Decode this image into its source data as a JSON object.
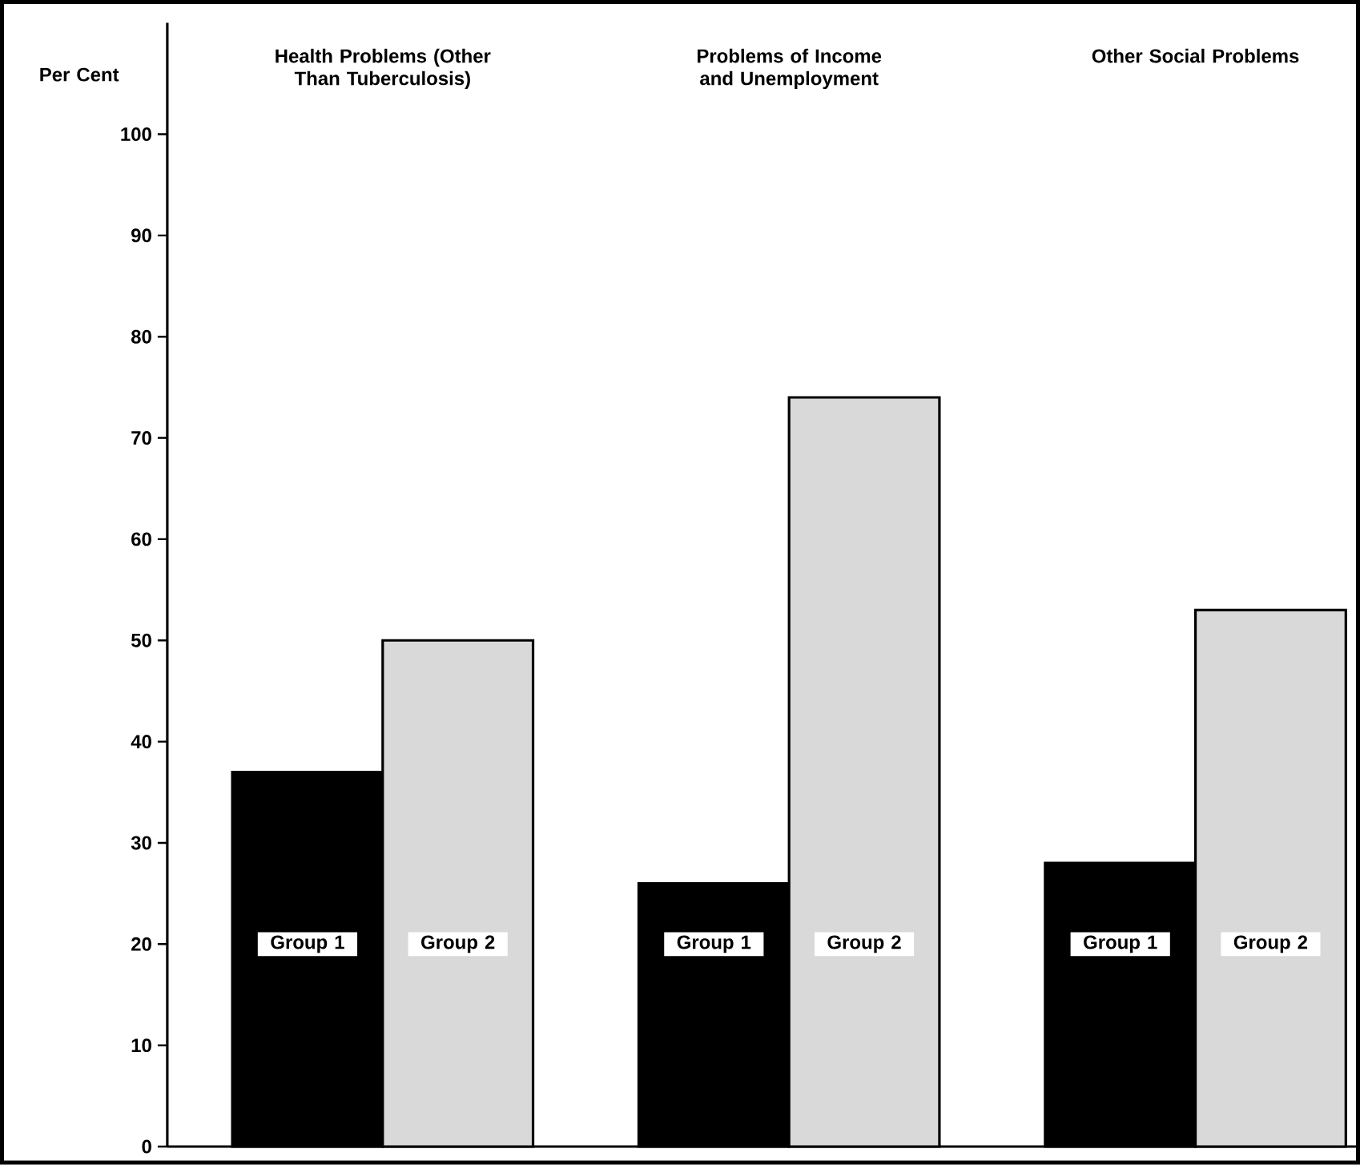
{
  "chart_data": {
    "type": "bar",
    "ylabel": "Per Cent",
    "categories": [
      "Health Problems (Other Than Tuberculosis)",
      "Problems of Income and Unemployment",
      "Other Social Problems"
    ],
    "series": [
      {
        "name": "Group 1",
        "color": "#000000",
        "values": [
          37,
          26,
          28
        ]
      },
      {
        "name": "Group 2",
        "color": "#d9d9d9",
        "values": [
          50,
          74,
          53
        ]
      }
    ],
    "ylim": [
      0,
      111
    ],
    "yticks": [
      0,
      10,
      20,
      30,
      40,
      50,
      60,
      70,
      80,
      90,
      100
    ],
    "grid": false
  }
}
